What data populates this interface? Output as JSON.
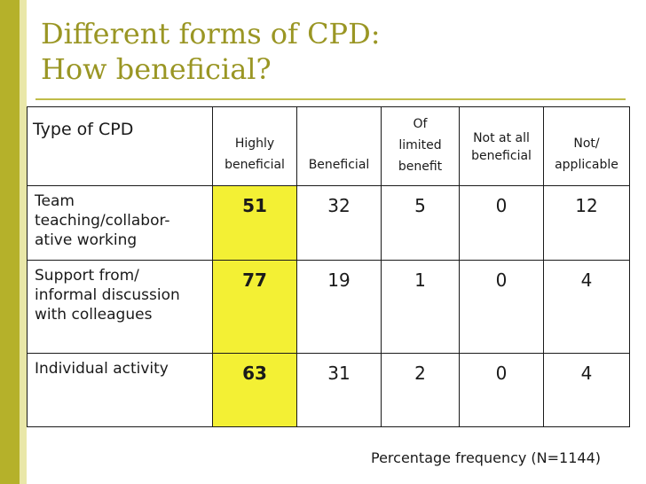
{
  "title": {
    "line1": "Different forms of CPD:",
    "line2": "How beneficial?"
  },
  "chart_data": {
    "type": "table",
    "header": {
      "type_label": "Type of CPD",
      "columns": [
        [
          "Highly",
          "beneficial"
        ],
        [
          "Beneficial"
        ],
        [
          "Of",
          "limited",
          "benefit"
        ],
        [
          "Not at all",
          "beneficial"
        ],
        [
          "Not/",
          "applicable"
        ]
      ]
    },
    "rows": [
      {
        "label": "Team teaching/collabor-ative working",
        "values": [
          "51",
          "32",
          "5",
          "0",
          "12"
        ]
      },
      {
        "label": "Support from/ informal discussion with colleagues",
        "values": [
          "77",
          "19",
          "1",
          "0",
          "4"
        ]
      },
      {
        "label": "Individual activity",
        "values": [
          "63",
          "31",
          "2",
          "0",
          "4"
        ]
      }
    ],
    "highlight_column": "Highly beneficial",
    "units": "Percentage frequency (N=1144)"
  },
  "colors": {
    "title": "#9a9624",
    "highlight": "#f3f034",
    "sidebar": "#b5b12a"
  }
}
